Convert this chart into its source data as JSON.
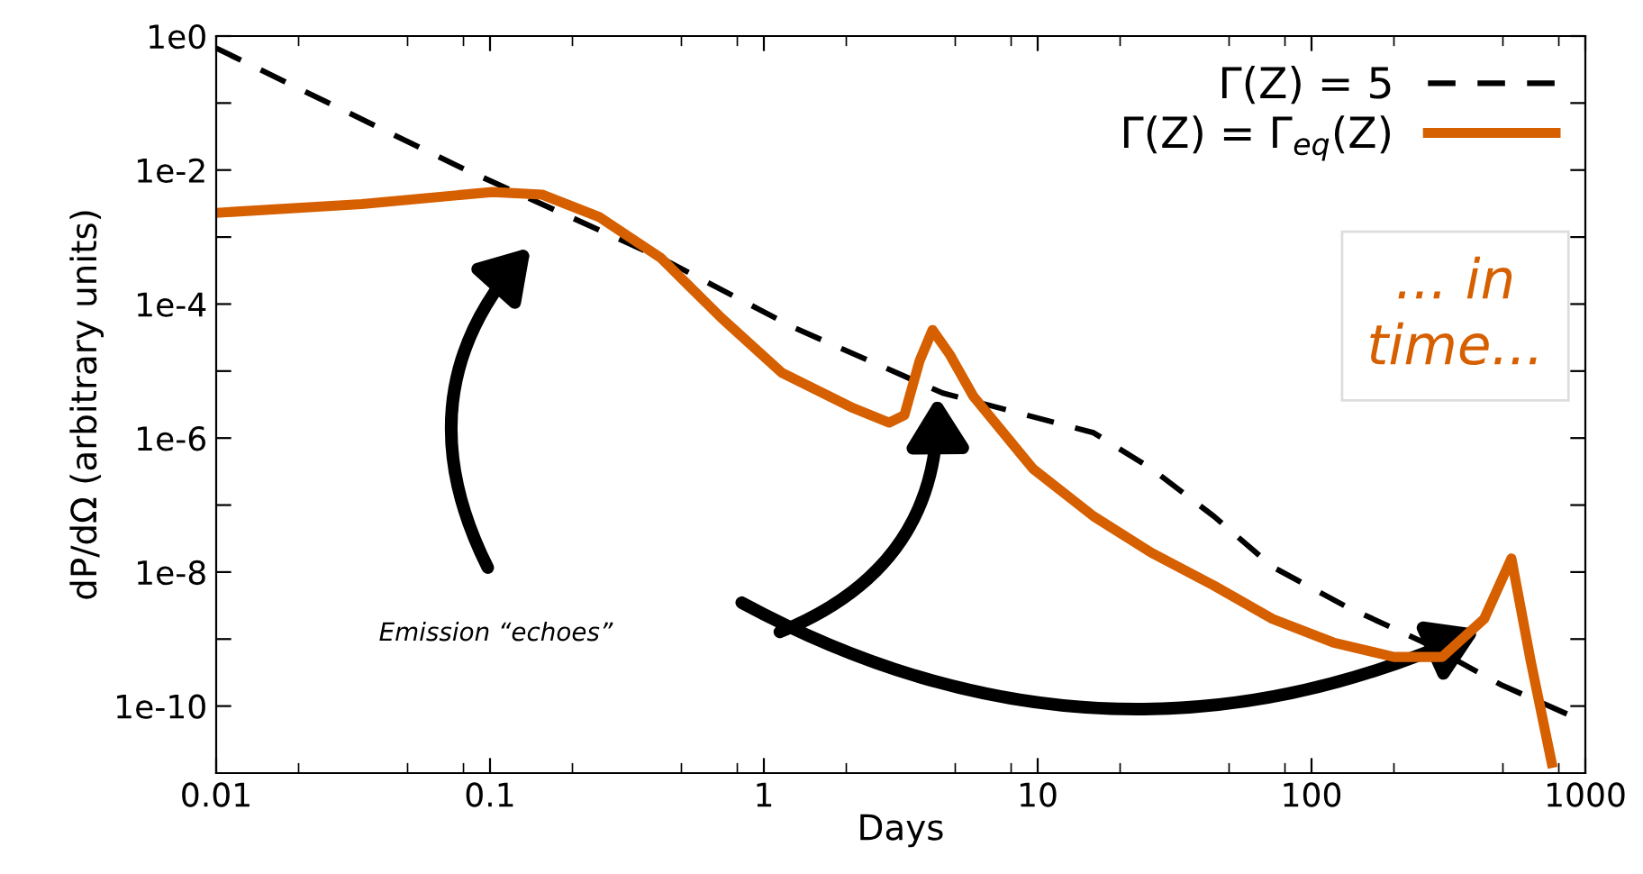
{
  "chart_data": {
    "type": "line",
    "xlabel": "Days",
    "ylabel": "dP/dΩ (arbitrary units)",
    "log": "xy",
    "xlim": [
      0.01,
      1000
    ],
    "xticks": [
      0.01,
      0.1,
      1,
      10,
      100,
      1000
    ],
    "ylim": [
      1e-11,
      1
    ],
    "yticks": [
      {
        "value": 1,
        "label": "1e0"
      },
      {
        "value": 0.1,
        "label": null
      },
      {
        "value": 0.01,
        "label": "1e-2"
      },
      {
        "value": 0.001,
        "label": null
      },
      {
        "value": 0.0001,
        "label": "1e-4"
      },
      {
        "value": 1e-05,
        "label": null
      },
      {
        "value": 1e-06,
        "label": "1e-6"
      },
      {
        "value": 1e-07,
        "label": null
      },
      {
        "value": 1e-08,
        "label": "1e-8"
      },
      {
        "value": 1e-09,
        "label": null
      },
      {
        "value": 1e-10,
        "label": "1e-10"
      }
    ],
    "legend": "top right",
    "grid": false,
    "series": [
      {
        "name": "Γ(Z) = 5",
        "color": "#000000",
        "line_style": "dashed",
        "x": [
          0.01,
          0.079,
          0.42,
          1.28,
          4.5,
          16,
          26,
          44,
          72,
          133,
          257,
          490,
          912
        ],
        "values": [
          0.66,
          0.0107,
          0.00049,
          4.5e-05,
          4.7e-06,
          1.2e-06,
          3.5e-07,
          6.8e-08,
          1.2e-08,
          3.1e-09,
          8.9e-10,
          2.1e-10,
          6.8e-11
        ]
      },
      {
        "name": "Γ(Z) = Γ$_{eq}$(Z)",
        "color": "#d65f00",
        "line_style": "solid",
        "x": [
          0.01,
          0.034,
          0.102,
          0.155,
          0.25,
          0.42,
          0.7,
          1.16,
          2.12,
          2.87,
          3.26,
          3.7,
          4.13,
          4.76,
          5.82,
          9.6,
          16,
          26,
          44,
          72,
          120,
          200,
          300,
          427,
          537,
          631,
          760
        ],
        "values": [
          0.0023,
          0.0031,
          0.0047,
          0.0043,
          0.002,
          0.00049,
          6.2e-05,
          9.5e-06,
          2.8e-06,
          1.7e-06,
          2.2e-06,
          1.4e-05,
          4.1e-05,
          1.8e-05,
          4.2e-06,
          3.5e-07,
          6.8e-08,
          1.95e-08,
          6.3e-09,
          2e-09,
          8.9e-10,
          5.4e-10,
          5.4e-10,
          2e-09,
          1.6e-08,
          4.8e-10,
          1.2e-11
        ]
      }
    ],
    "annotations": [
      "Emission “echoes”",
      "... in\ntime..."
    ]
  }
}
